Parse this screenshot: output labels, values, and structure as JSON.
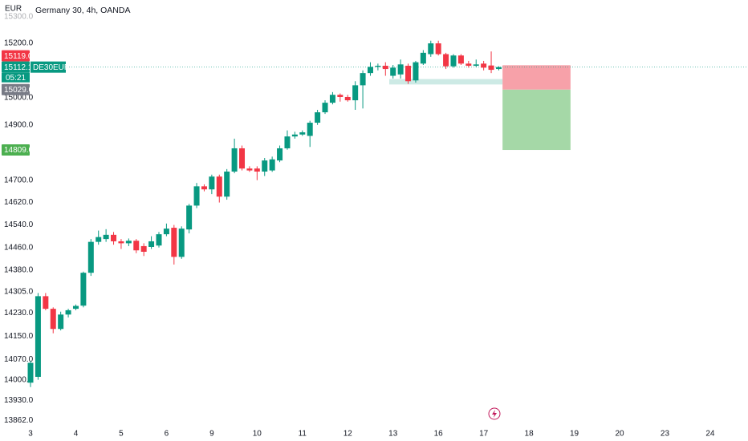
{
  "header": {
    "currency": "EUR",
    "title": "Germany 30, 4h, OANDA"
  },
  "chart_data": {
    "type": "candlestick",
    "log_scale": true,
    "up_color": "#089981",
    "down_color": "#f23645",
    "candles": {
      "open": [
        13990,
        14010,
        14289,
        14245,
        14175,
        14225,
        14245,
        14256,
        14371,
        14480,
        14490,
        14505,
        14482,
        14475,
        14484,
        14465,
        14462,
        14467,
        14507,
        14530,
        14427,
        14524,
        14609,
        14678,
        14667,
        14713,
        14641,
        14731,
        14815,
        14742,
        14742,
        14731,
        14735,
        14771,
        14815,
        14858,
        14865,
        14860,
        14908,
        14946,
        14981,
        15010,
        15002,
        14990,
        15045,
        15090,
        15113,
        15117,
        15080,
        15085,
        15117,
        15063,
        15125,
        15160,
        15200,
        15160,
        15115,
        15155,
        15125,
        15117,
        15125,
        15118,
        15105
      ],
      "high": [
        14065,
        14300,
        14300,
        14250,
        14235,
        14245,
        14260,
        14375,
        14490,
        14520,
        14525,
        14515,
        14490,
        14492,
        14490,
        14475,
        14500,
        14515,
        14545,
        14540,
        14535,
        14615,
        14690,
        14685,
        14720,
        14720,
        14740,
        14850,
        14825,
        14750,
        14750,
        14780,
        14785,
        14825,
        14880,
        14875,
        14880,
        14915,
        14955,
        14990,
        15020,
        15015,
        15010,
        15060,
        15100,
        15130,
        15125,
        15130,
        15120,
        15140,
        15125,
        15135,
        15175,
        15210,
        15210,
        15165,
        15160,
        15160,
        15135,
        15140,
        15135,
        15170,
        15115
      ],
      "low": [
        13975,
        14000,
        14240,
        14160,
        14170,
        14215,
        14240,
        14250,
        14360,
        14470,
        14480,
        14470,
        14455,
        14465,
        14440,
        14430,
        14455,
        14460,
        14500,
        14400,
        14420,
        14510,
        14600,
        14660,
        14650,
        14620,
        14630,
        14725,
        14735,
        14730,
        14700,
        14715,
        14730,
        14765,
        14810,
        14850,
        14860,
        14820,
        14900,
        14940,
        14975,
        14985,
        14985,
        14955,
        14960,
        15080,
        15100,
        15080,
        15070,
        15070,
        15050,
        15055,
        15120,
        15150,
        15155,
        15105,
        15110,
        15120,
        15110,
        15112,
        15100,
        15090,
        15100
      ],
      "close": [
        14058,
        14289,
        14245,
        14175,
        14225,
        14240,
        14255,
        14371,
        14480,
        14497,
        14505,
        14482,
        14475,
        14484,
        14450,
        14445,
        14482,
        14507,
        14527,
        14427,
        14527,
        14609,
        14678,
        14667,
        14713,
        14641,
        14731,
        14815,
        14742,
        14735,
        14731,
        14771,
        14775,
        14815,
        14858,
        14865,
        14873,
        14908,
        14946,
        14981,
        15010,
        15002,
        14990,
        15045,
        15090,
        15113,
        15117,
        15105,
        15110,
        15122,
        15060,
        15130,
        15165,
        15200,
        15160,
        15115,
        15155,
        15125,
        15117,
        15122,
        15110,
        15102,
        15112
      ]
    },
    "ylim": [
      13838,
      15362
    ],
    "yticks": [
      {
        "value": 15300,
        "label": "15300.0"
      },
      {
        "value": 15200,
        "label": "15200.0"
      },
      {
        "value": 15000,
        "label": "15000.0"
      },
      {
        "value": 14900,
        "label": "14900.0"
      },
      {
        "value": 14700,
        "label": "14700.0"
      },
      {
        "value": 14620,
        "label": "14620.0"
      },
      {
        "value": 14540,
        "label": "14540.0"
      },
      {
        "value": 14460,
        "label": "14460.0"
      },
      {
        "value": 14380,
        "label": "14380.0"
      },
      {
        "value": 14305,
        "label": "14305.0"
      },
      {
        "value": 14230,
        "label": "14230.0"
      },
      {
        "value": 14150,
        "label": "14150.0"
      },
      {
        "value": 14070,
        "label": "14070.0"
      },
      {
        "value": 14000,
        "label": "14000.0"
      },
      {
        "value": 13930,
        "label": "13930.0"
      },
      {
        "value": 13862,
        "label": "13862.0"
      }
    ],
    "xlim": [
      -4.04,
      95
    ],
    "xticks": [
      {
        "value": 0,
        "label": "3"
      },
      {
        "value": 6,
        "label": "4"
      },
      {
        "value": 12,
        "label": "5"
      },
      {
        "value": 18,
        "label": "6"
      },
      {
        "value": 24,
        "label": "9"
      },
      {
        "value": 30,
        "label": "10"
      },
      {
        "value": 36,
        "label": "11"
      },
      {
        "value": 42,
        "label": "12"
      },
      {
        "value": 48,
        "label": "13"
      },
      {
        "value": 54,
        "label": "16"
      },
      {
        "value": 60,
        "label": "17"
      },
      {
        "value": 66,
        "label": "18"
      },
      {
        "value": 72,
        "label": "19"
      },
      {
        "value": 78,
        "label": "20"
      },
      {
        "value": 84,
        "label": "23"
      },
      {
        "value": 90,
        "label": "24"
      }
    ],
    "price_labels": [
      {
        "value": 15119,
        "label": "15119.0",
        "color": "#f23645"
      },
      {
        "value": 15112.1,
        "label": "15112.1",
        "color": "#089981",
        "symbol": "DE30EUR",
        "countdown": "05:21"
      },
      {
        "value": 15029,
        "label": "15029.0",
        "color": "#787b86"
      },
      {
        "value": 14809,
        "label": "14809.0",
        "color": "#4caf50"
      }
    ],
    "position": {
      "start": 62.5,
      "end": 71.5,
      "stop": 15119,
      "entry": 15029,
      "target": 14809
    },
    "zone": {
      "start": 47.5,
      "end": 62.5,
      "top": 15068,
      "bottom": 15048
    }
  }
}
